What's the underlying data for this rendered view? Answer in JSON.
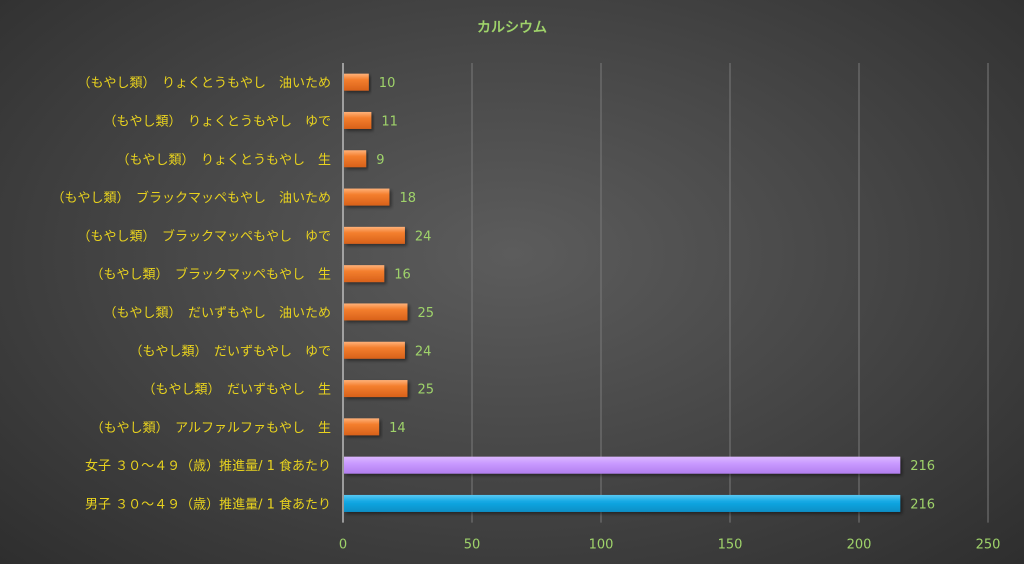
{
  "chart_data": {
    "type": "bar",
    "orientation": "horizontal",
    "title": "カルシウム",
    "categories": [
      "（もやし類）　りょくとうもやし　油いため",
      "（もやし類）　りょくとうもやし　ゆで",
      "（もやし類）　りょくとうもやし　生",
      "（もやし類）　ブラックマッペもやし　油いため",
      "（もやし類）　ブラックマッペもやし　ゆで",
      "（もやし類）　ブラックマッペもやし　生",
      "（もやし類）　だいずもやし　油いため",
      "（もやし類）　だいずもやし　ゆで",
      "（もやし類）　だいずもやし　生",
      "（もやし類）　アルファルファもやし　生",
      "女子 ３０～４９（歳）推進量/ 1 食あたり",
      "男子 ３０～４９（歳）推進量/ 1 食あたり"
    ],
    "values": [
      10,
      11,
      9,
      18,
      24,
      16,
      25,
      24,
      25,
      14,
      216,
      216
    ],
    "bar_colors": [
      "#f07b2c",
      "#f07b2c",
      "#f07b2c",
      "#f07b2c",
      "#f07b2c",
      "#f07b2c",
      "#f07b2c",
      "#f07b2c",
      "#f07b2c",
      "#f07b2c",
      "#c99aff",
      "#12a8e4"
    ],
    "xlim": [
      0,
      250
    ],
    "x_ticks": [
      0,
      50,
      100,
      150,
      200,
      250
    ],
    "grid": true,
    "colors": {
      "title": "#9fd36a",
      "category_label": "#e8d21e",
      "tick_label": "#9fd36a",
      "value_label": "#9fd36a",
      "grid": "#7a7a7a",
      "axis": "#d8d8d8"
    }
  }
}
